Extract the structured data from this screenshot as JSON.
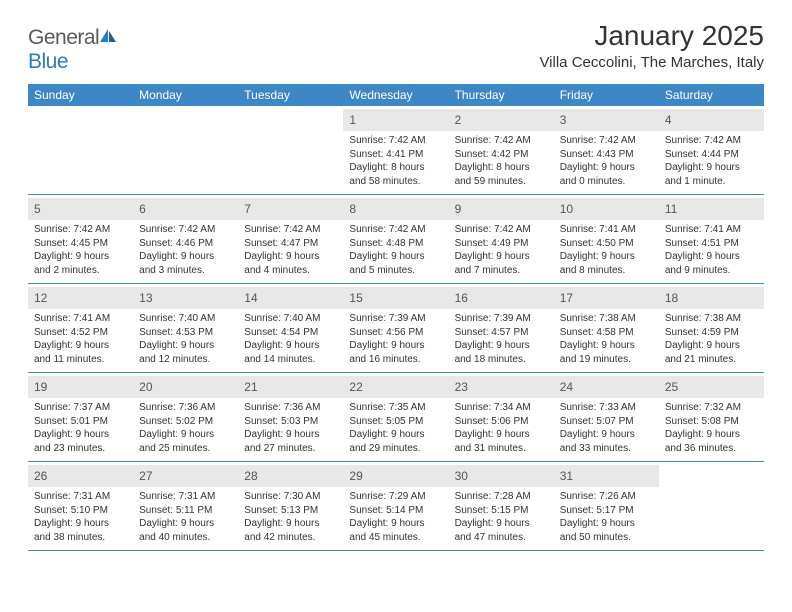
{
  "brand": {
    "part1": "General",
    "part2": "Blue"
  },
  "title": "January 2025",
  "location": "Villa Ceccolini, The Marches, Italy",
  "colors": {
    "header_bg": "#3d87c7",
    "header_fg": "#ffffff",
    "daynum_bg": "#e8e8e8",
    "row_border": "#3d87c7",
    "text": "#333333",
    "logo_gray": "#5a5a5a",
    "logo_blue": "#2a7bbf"
  },
  "weekdays": [
    "Sunday",
    "Monday",
    "Tuesday",
    "Wednesday",
    "Thursday",
    "Friday",
    "Saturday"
  ],
  "weeks": [
    [
      {
        "day": "",
        "lines": [
          "",
          "",
          "",
          ""
        ]
      },
      {
        "day": "",
        "lines": [
          "",
          "",
          "",
          ""
        ]
      },
      {
        "day": "",
        "lines": [
          "",
          "",
          "",
          ""
        ]
      },
      {
        "day": "1",
        "lines": [
          "Sunrise: 7:42 AM",
          "Sunset: 4:41 PM",
          "Daylight: 8 hours",
          "and 58 minutes."
        ]
      },
      {
        "day": "2",
        "lines": [
          "Sunrise: 7:42 AM",
          "Sunset: 4:42 PM",
          "Daylight: 8 hours",
          "and 59 minutes."
        ]
      },
      {
        "day": "3",
        "lines": [
          "Sunrise: 7:42 AM",
          "Sunset: 4:43 PM",
          "Daylight: 9 hours",
          "and 0 minutes."
        ]
      },
      {
        "day": "4",
        "lines": [
          "Sunrise: 7:42 AM",
          "Sunset: 4:44 PM",
          "Daylight: 9 hours",
          "and 1 minute."
        ]
      }
    ],
    [
      {
        "day": "5",
        "lines": [
          "Sunrise: 7:42 AM",
          "Sunset: 4:45 PM",
          "Daylight: 9 hours",
          "and 2 minutes."
        ]
      },
      {
        "day": "6",
        "lines": [
          "Sunrise: 7:42 AM",
          "Sunset: 4:46 PM",
          "Daylight: 9 hours",
          "and 3 minutes."
        ]
      },
      {
        "day": "7",
        "lines": [
          "Sunrise: 7:42 AM",
          "Sunset: 4:47 PM",
          "Daylight: 9 hours",
          "and 4 minutes."
        ]
      },
      {
        "day": "8",
        "lines": [
          "Sunrise: 7:42 AM",
          "Sunset: 4:48 PM",
          "Daylight: 9 hours",
          "and 5 minutes."
        ]
      },
      {
        "day": "9",
        "lines": [
          "Sunrise: 7:42 AM",
          "Sunset: 4:49 PM",
          "Daylight: 9 hours",
          "and 7 minutes."
        ]
      },
      {
        "day": "10",
        "lines": [
          "Sunrise: 7:41 AM",
          "Sunset: 4:50 PM",
          "Daylight: 9 hours",
          "and 8 minutes."
        ]
      },
      {
        "day": "11",
        "lines": [
          "Sunrise: 7:41 AM",
          "Sunset: 4:51 PM",
          "Daylight: 9 hours",
          "and 9 minutes."
        ]
      }
    ],
    [
      {
        "day": "12",
        "lines": [
          "Sunrise: 7:41 AM",
          "Sunset: 4:52 PM",
          "Daylight: 9 hours",
          "and 11 minutes."
        ]
      },
      {
        "day": "13",
        "lines": [
          "Sunrise: 7:40 AM",
          "Sunset: 4:53 PM",
          "Daylight: 9 hours",
          "and 12 minutes."
        ]
      },
      {
        "day": "14",
        "lines": [
          "Sunrise: 7:40 AM",
          "Sunset: 4:54 PM",
          "Daylight: 9 hours",
          "and 14 minutes."
        ]
      },
      {
        "day": "15",
        "lines": [
          "Sunrise: 7:39 AM",
          "Sunset: 4:56 PM",
          "Daylight: 9 hours",
          "and 16 minutes."
        ]
      },
      {
        "day": "16",
        "lines": [
          "Sunrise: 7:39 AM",
          "Sunset: 4:57 PM",
          "Daylight: 9 hours",
          "and 18 minutes."
        ]
      },
      {
        "day": "17",
        "lines": [
          "Sunrise: 7:38 AM",
          "Sunset: 4:58 PM",
          "Daylight: 9 hours",
          "and 19 minutes."
        ]
      },
      {
        "day": "18",
        "lines": [
          "Sunrise: 7:38 AM",
          "Sunset: 4:59 PM",
          "Daylight: 9 hours",
          "and 21 minutes."
        ]
      }
    ],
    [
      {
        "day": "19",
        "lines": [
          "Sunrise: 7:37 AM",
          "Sunset: 5:01 PM",
          "Daylight: 9 hours",
          "and 23 minutes."
        ]
      },
      {
        "day": "20",
        "lines": [
          "Sunrise: 7:36 AM",
          "Sunset: 5:02 PM",
          "Daylight: 9 hours",
          "and 25 minutes."
        ]
      },
      {
        "day": "21",
        "lines": [
          "Sunrise: 7:36 AM",
          "Sunset: 5:03 PM",
          "Daylight: 9 hours",
          "and 27 minutes."
        ]
      },
      {
        "day": "22",
        "lines": [
          "Sunrise: 7:35 AM",
          "Sunset: 5:05 PM",
          "Daylight: 9 hours",
          "and 29 minutes."
        ]
      },
      {
        "day": "23",
        "lines": [
          "Sunrise: 7:34 AM",
          "Sunset: 5:06 PM",
          "Daylight: 9 hours",
          "and 31 minutes."
        ]
      },
      {
        "day": "24",
        "lines": [
          "Sunrise: 7:33 AM",
          "Sunset: 5:07 PM",
          "Daylight: 9 hours",
          "and 33 minutes."
        ]
      },
      {
        "day": "25",
        "lines": [
          "Sunrise: 7:32 AM",
          "Sunset: 5:08 PM",
          "Daylight: 9 hours",
          "and 36 minutes."
        ]
      }
    ],
    [
      {
        "day": "26",
        "lines": [
          "Sunrise: 7:31 AM",
          "Sunset: 5:10 PM",
          "Daylight: 9 hours",
          "and 38 minutes."
        ]
      },
      {
        "day": "27",
        "lines": [
          "Sunrise: 7:31 AM",
          "Sunset: 5:11 PM",
          "Daylight: 9 hours",
          "and 40 minutes."
        ]
      },
      {
        "day": "28",
        "lines": [
          "Sunrise: 7:30 AM",
          "Sunset: 5:13 PM",
          "Daylight: 9 hours",
          "and 42 minutes."
        ]
      },
      {
        "day": "29",
        "lines": [
          "Sunrise: 7:29 AM",
          "Sunset: 5:14 PM",
          "Daylight: 9 hours",
          "and 45 minutes."
        ]
      },
      {
        "day": "30",
        "lines": [
          "Sunrise: 7:28 AM",
          "Sunset: 5:15 PM",
          "Daylight: 9 hours",
          "and 47 minutes."
        ]
      },
      {
        "day": "31",
        "lines": [
          "Sunrise: 7:26 AM",
          "Sunset: 5:17 PM",
          "Daylight: 9 hours",
          "and 50 minutes."
        ]
      },
      {
        "day": "",
        "lines": [
          "",
          "",
          "",
          ""
        ]
      }
    ]
  ]
}
